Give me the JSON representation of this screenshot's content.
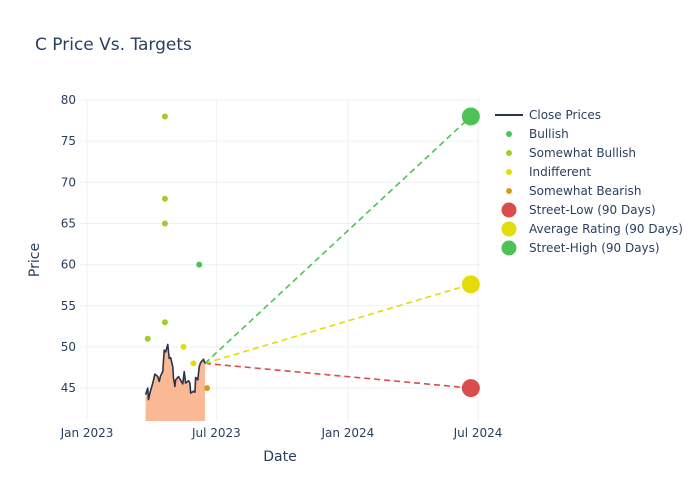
{
  "chart_data": {
    "type": "line",
    "title": "C Price Vs. Targets",
    "xlabel": "Date",
    "ylabel": "Price",
    "xlim": [
      "2022-12-01",
      "2024-07-15"
    ],
    "ylim": [
      41,
      80
    ],
    "grid": true,
    "legend_position": "right",
    "x_ticks": [
      {
        "date": "2023-01-01",
        "label": "Jan 2023"
      },
      {
        "date": "2023-07-01",
        "label": "Jul 2023"
      },
      {
        "date": "2024-01-01",
        "label": "Jan 2024"
      },
      {
        "date": "2024-07-01",
        "label": "Jul 2024"
      }
    ],
    "y_ticks": [
      45,
      50,
      55,
      60,
      65,
      70,
      75,
      80
    ],
    "series": [
      {
        "name": "Close Prices",
        "kind": "line",
        "color": "#2a3447",
        "fill_color": "#fbb894",
        "points": [
          {
            "x": "2023-03-24",
            "y": 44.2
          },
          {
            "x": "2023-03-27",
            "y": 45.0
          },
          {
            "x": "2023-03-28",
            "y": 43.6
          },
          {
            "x": "2023-03-30",
            "y": 44.4
          },
          {
            "x": "2023-04-03",
            "y": 45.6
          },
          {
            "x": "2023-04-06",
            "y": 46.7
          },
          {
            "x": "2023-04-10",
            "y": 46.4
          },
          {
            "x": "2023-04-12",
            "y": 45.8
          },
          {
            "x": "2023-04-14",
            "y": 46.5
          },
          {
            "x": "2023-04-17",
            "y": 47.0
          },
          {
            "x": "2023-04-19",
            "y": 49.6
          },
          {
            "x": "2023-04-21",
            "y": 49.4
          },
          {
            "x": "2023-04-24",
            "y": 50.3
          },
          {
            "x": "2023-04-26",
            "y": 48.6
          },
          {
            "x": "2023-04-28",
            "y": 48.7
          },
          {
            "x": "2023-05-01",
            "y": 47.6
          },
          {
            "x": "2023-05-02",
            "y": 46.2
          },
          {
            "x": "2023-05-04",
            "y": 45.2
          },
          {
            "x": "2023-05-05",
            "y": 46.0
          },
          {
            "x": "2023-05-09",
            "y": 46.4
          },
          {
            "x": "2023-05-11",
            "y": 46.1
          },
          {
            "x": "2023-05-15",
            "y": 45.5
          },
          {
            "x": "2023-05-17",
            "y": 47.0
          },
          {
            "x": "2023-05-19",
            "y": 45.6
          },
          {
            "x": "2023-05-23",
            "y": 45.9
          },
          {
            "x": "2023-05-25",
            "y": 45.6
          },
          {
            "x": "2023-05-26",
            "y": 44.4
          },
          {
            "x": "2023-05-30",
            "y": 44.6
          },
          {
            "x": "2023-06-01",
            "y": 44.5
          },
          {
            "x": "2023-06-02",
            "y": 46.3
          },
          {
            "x": "2023-06-05",
            "y": 46.0
          },
          {
            "x": "2023-06-07",
            "y": 47.6
          },
          {
            "x": "2023-06-09",
            "y": 48.1
          },
          {
            "x": "2023-06-13",
            "y": 48.5
          },
          {
            "x": "2023-06-15",
            "y": 48.0
          }
        ]
      },
      {
        "name": "Bullish",
        "kind": "scatter",
        "color": "#4cc257",
        "points": [
          {
            "x": "2023-06-07",
            "y": 60
          }
        ]
      },
      {
        "name": "Somewhat Bullish",
        "kind": "scatter",
        "color": "#a2cc2b",
        "points": [
          {
            "x": "2023-04-20",
            "y": 78
          },
          {
            "x": "2023-04-20",
            "y": 68
          },
          {
            "x": "2023-04-20",
            "y": 65
          },
          {
            "x": "2023-03-27",
            "y": 51
          },
          {
            "x": "2023-04-20",
            "y": 53
          }
        ]
      },
      {
        "name": "Indifferent",
        "kind": "scatter",
        "color": "#e2dd08",
        "points": [
          {
            "x": "2023-05-16",
            "y": 50
          },
          {
            "x": "2023-05-30",
            "y": 48
          }
        ]
      },
      {
        "name": "Somewhat Bearish",
        "kind": "scatter",
        "color": "#d89b1d",
        "points": [
          {
            "x": "2023-06-18",
            "y": 45
          }
        ]
      },
      {
        "name": "Street-Low (90 Days)",
        "kind": "target",
        "color": "#da4d4d",
        "points": [
          {
            "x": "2024-06-21",
            "y": 45
          }
        ],
        "line_from": {
          "x": "2023-06-15",
          "y": 48.0
        }
      },
      {
        "name": "Average Rating (90 Days)",
        "kind": "target",
        "color": "#e2dd08",
        "points": [
          {
            "x": "2024-06-21",
            "y": 57.6
          }
        ],
        "line_from": {
          "x": "2023-06-15",
          "y": 48.0
        }
      },
      {
        "name": "Street-High (90 Days)",
        "kind": "target",
        "color": "#4cc257",
        "points": [
          {
            "x": "2024-06-21",
            "y": 78
          }
        ],
        "line_from": {
          "x": "2023-06-15",
          "y": 48.0
        }
      }
    ]
  }
}
